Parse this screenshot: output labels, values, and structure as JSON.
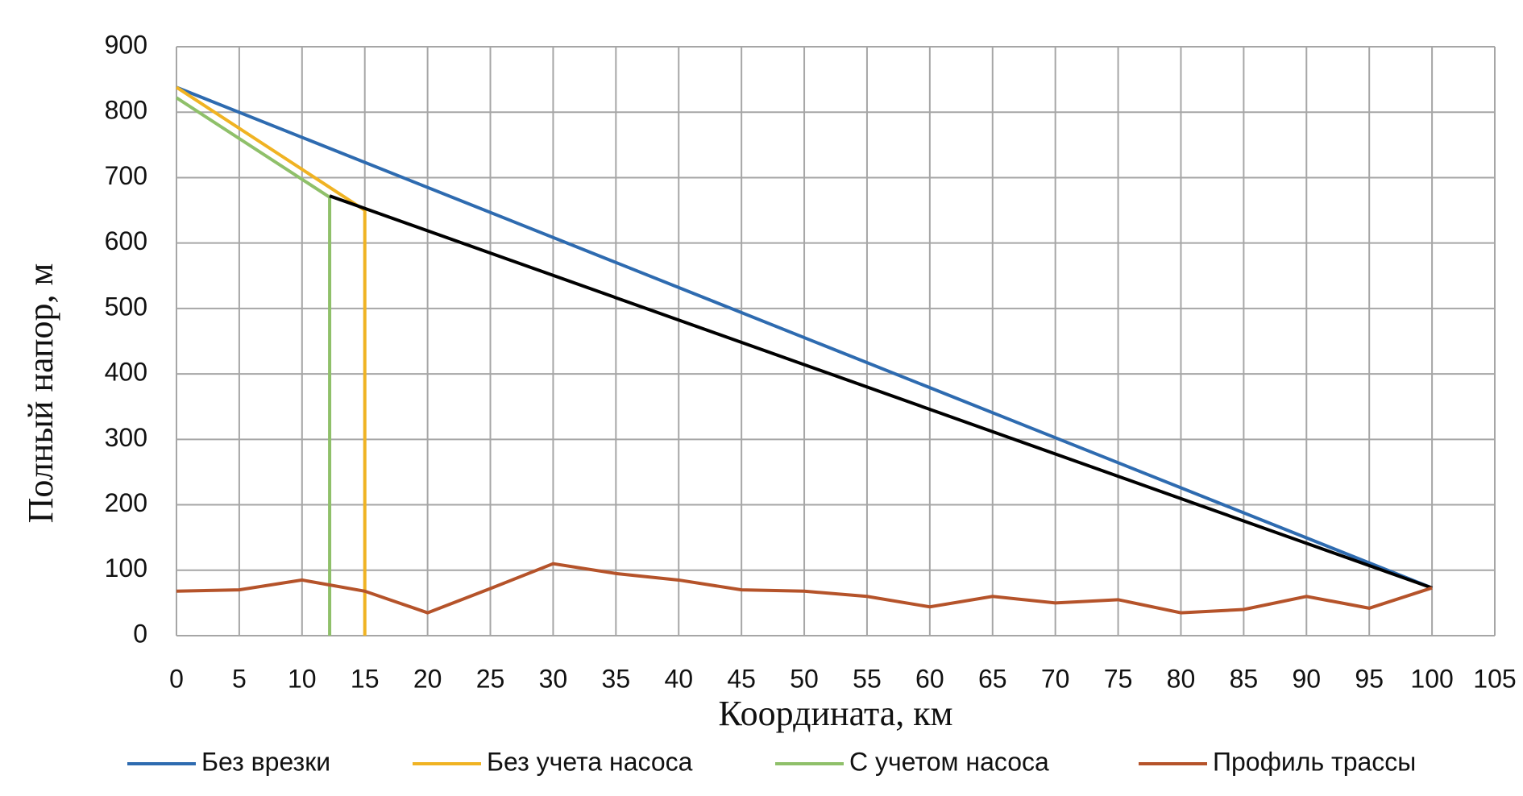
{
  "chart_data": {
    "type": "line",
    "xlabel": "Координата, км",
    "ylabel": "Полный напор, м",
    "xlim": [
      0,
      105
    ],
    "xticks": [
      0,
      5,
      10,
      15,
      20,
      25,
      30,
      35,
      40,
      45,
      50,
      55,
      60,
      65,
      70,
      75,
      80,
      85,
      90,
      95,
      100,
      105
    ],
    "ylim": [
      0,
      900
    ],
    "yticks": [
      0,
      100,
      200,
      300,
      400,
      500,
      600,
      700,
      800,
      900
    ],
    "grid": true,
    "legend": "bottom",
    "series": [
      {
        "name": "Без врезки",
        "color": "#2e6bb0",
        "x": [
          0,
          100
        ],
        "values": [
          838,
          73
        ]
      },
      {
        "name": "Без учета насоса",
        "color": "#f0b323",
        "x": [
          0,
          15,
          15
        ],
        "values": [
          838,
          650,
          0
        ]
      },
      {
        "name": "С учетом насоса",
        "color": "#8fc06a",
        "x": [
          0,
          12.2,
          12.2
        ],
        "values": [
          822,
          670,
          0
        ]
      },
      {
        "color": "#000000",
        "x": [
          12.2,
          100
        ],
        "values": [
          672,
          73
        ]
      },
      {
        "name": "Профиль трассы",
        "color": "#b5532a",
        "x": [
          0,
          5,
          10,
          15,
          20,
          25,
          30,
          35,
          40,
          45,
          50,
          55,
          60,
          65,
          70,
          75,
          80,
          85,
          90,
          95,
          100
        ],
        "values": [
          68,
          70,
          85,
          68,
          35,
          72,
          110,
          95,
          85,
          70,
          68,
          60,
          44,
          60,
          50,
          55,
          35,
          40,
          60,
          42,
          73
        ]
      }
    ]
  }
}
